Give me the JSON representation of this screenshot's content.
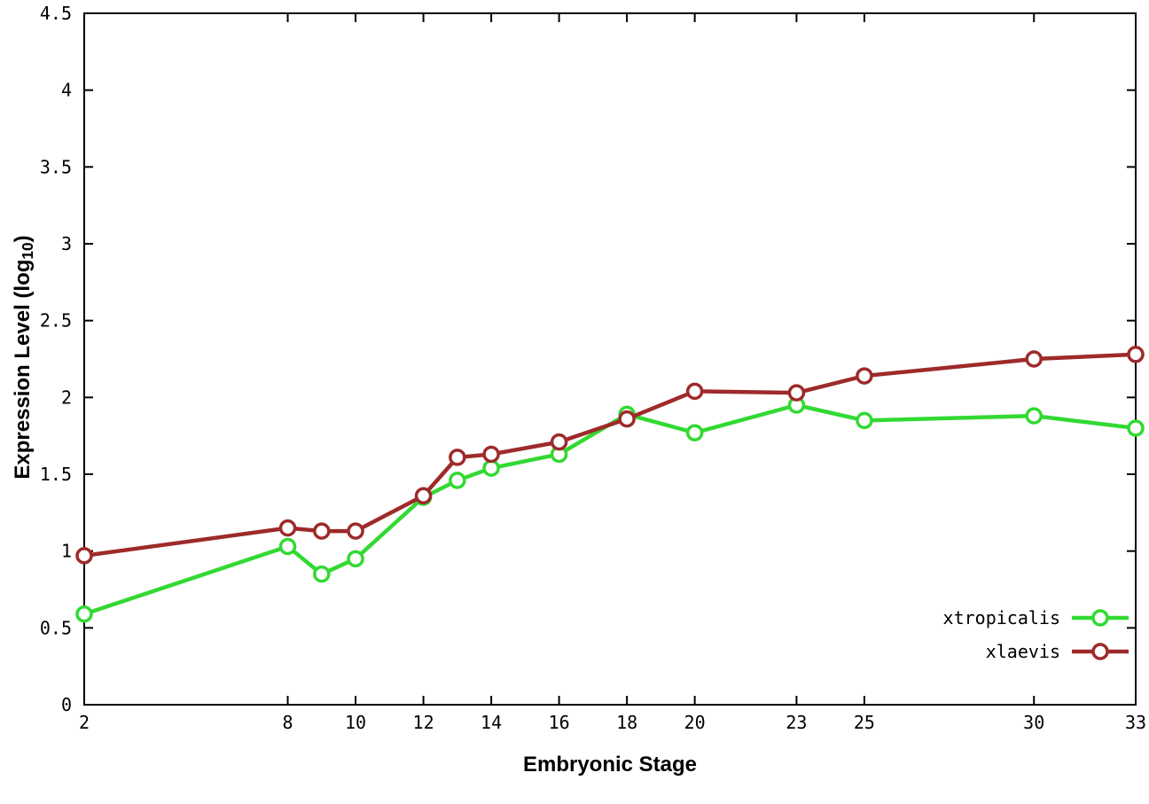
{
  "figure": {
    "background": "#ffffff",
    "axis_color": "#000000"
  },
  "chart_data": {
    "type": "line",
    "title": "",
    "xlabel": "Embryonic Stage",
    "ylabel": "Expression Level (log10)",
    "ylabel_parts": {
      "main": "Expression Level (log",
      "sub": "10",
      "end": ")"
    },
    "xlim": [
      2,
      33
    ],
    "ylim": [
      0,
      4.5
    ],
    "x": [
      2,
      8,
      9,
      10,
      12,
      13,
      14,
      16,
      18,
      20,
      23,
      25,
      30,
      33
    ],
    "xticks": [
      2,
      8,
      10,
      12,
      14,
      16,
      18,
      20,
      23,
      25,
      30,
      33
    ],
    "yticks": [
      0,
      0.5,
      1,
      1.5,
      2,
      2.5,
      3,
      3.5,
      4,
      4.5
    ],
    "grid": false,
    "legend_position": "bottom-right",
    "legend_entries": [
      "xtropicalis",
      "xlaevis"
    ],
    "series": [
      {
        "name": "xtropicalis",
        "color": "#32d932",
        "marker": "open-circle",
        "values": [
          0.59,
          1.03,
          0.85,
          0.95,
          1.35,
          1.46,
          1.54,
          1.63,
          1.89,
          1.77,
          1.95,
          1.85,
          1.88,
          1.8
        ]
      },
      {
        "name": "xlaevis",
        "color": "#9e2a2a",
        "marker": "open-circle",
        "values": [
          0.97,
          1.15,
          1.13,
          1.13,
          1.36,
          1.61,
          1.63,
          1.71,
          1.86,
          2.04,
          2.03,
          2.14,
          2.25,
          2.28
        ]
      }
    ]
  }
}
